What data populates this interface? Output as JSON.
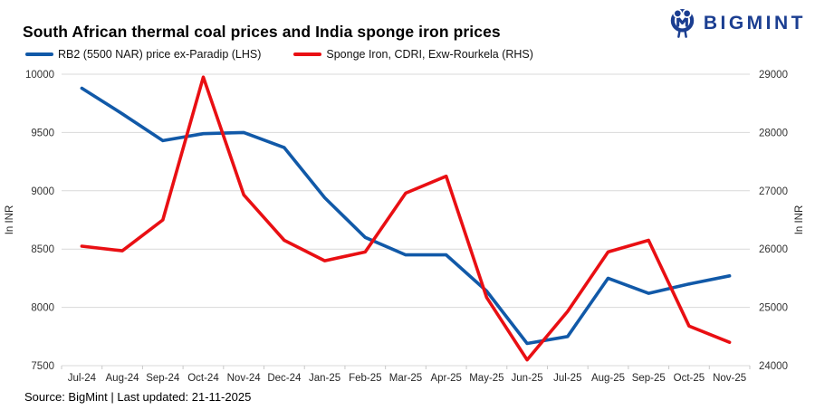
{
  "header": {
    "title": "South African thermal coal prices and India sponge iron prices",
    "logo_text": "BIGMINT"
  },
  "legend": [
    {
      "label": "RB2 (5500 NAR) price ex-Paradip (LHS)",
      "color": "#1159a8"
    },
    {
      "label": "Sponge Iron, CDRI, Exw-Rourkela (RHS)",
      "color": "#e90f13"
    }
  ],
  "footer": {
    "text": "Source: BigMint | Last updated: 21-11-2025"
  },
  "colors": {
    "series_blue": "#1159a8",
    "series_red": "#e90f13",
    "logo_navy": "#1b3e91",
    "gridline": "#d9d9d9",
    "tick": "#c9c9c9",
    "axis_text": "#333333"
  },
  "chart_data": {
    "type": "line",
    "title": "South African thermal coal prices and India sponge iron prices",
    "categories": [
      "Jul-24",
      "Aug-24",
      "Sep-24",
      "Oct-24",
      "Nov-24",
      "Dec-24",
      "Jan-25",
      "Feb-25",
      "Mar-25",
      "Apr-25",
      "May-25",
      "Jun-25",
      "Jul-25",
      "Aug-25",
      "Sep-25",
      "Oct-25",
      "Nov-25"
    ],
    "series": [
      {
        "name": "RB2 (5500 NAR) price ex-Paradip (LHS)",
        "axis": "left",
        "color": "#1159a8",
        "values": [
          9880,
          9660,
          9430,
          9490,
          9500,
          9370,
          8940,
          8600,
          8450,
          8450,
          8140,
          7690,
          7750,
          8250,
          8120,
          8200,
          8270
        ]
      },
      {
        "name": "Sponge Iron, CDRI, Exw-Rourkela (RHS)",
        "axis": "right",
        "color": "#e90f13",
        "values": [
          26050,
          25970,
          26500,
          28950,
          26930,
          26150,
          25800,
          25950,
          26960,
          27250,
          25170,
          24100,
          24930,
          25950,
          26150,
          24680,
          24400
        ]
      }
    ],
    "left_axis": {
      "label": "In INR",
      "min": 7500,
      "max": 10000,
      "step": 500,
      "ticks": [
        10000,
        9500,
        9000,
        8500,
        8000,
        7500
      ]
    },
    "right_axis": {
      "label": "In INR",
      "min": 24000,
      "max": 29000,
      "step": 1000,
      "ticks": [
        29000,
        28000,
        27000,
        26000,
        25000,
        24000
      ]
    },
    "grid": true,
    "legend_position": "top"
  }
}
